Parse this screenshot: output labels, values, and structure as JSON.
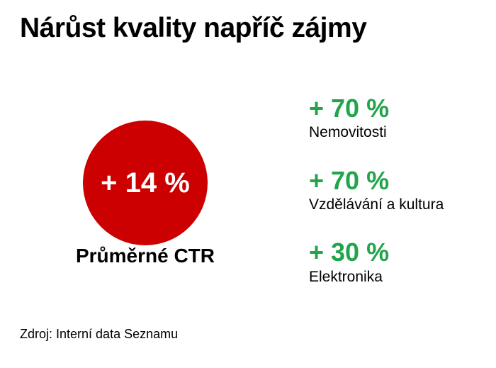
{
  "slide": {
    "title": "Nárůst kvality napříč zájmy",
    "highlight": {
      "value": "+ 14 %",
      "label": "Průměrné CTR"
    },
    "stats": [
      {
        "value": "+ 70 %",
        "label": "Nemovitosti"
      },
      {
        "value": "+ 70 %",
        "label": "Vzdělávání a kultura"
      },
      {
        "value": "+ 30 %",
        "label": "Elektronika"
      }
    ],
    "source": "Zdroj: Interní data Seznamu",
    "colors": {
      "circle_red": "#cc0000",
      "stat_green": "#21a54b",
      "text_black": "#000000",
      "background": "#ffffff"
    }
  },
  "chart_data": {
    "type": "table",
    "title": "Nárůst kvality napříč zájmy",
    "categories": [
      "Průměrné CTR",
      "Nemovitosti",
      "Vzdělávání a kultura",
      "Elektronika"
    ],
    "values": [
      14,
      70,
      70,
      30
    ],
    "unit": "%",
    "notes": "Infographic slide: average CTR growth highlighted in red circle; per-interest-category CTR growth listed in green.",
    "source": "Zdroj: Interní data Seznamu",
    "legend_position": "none",
    "grid": false
  }
}
